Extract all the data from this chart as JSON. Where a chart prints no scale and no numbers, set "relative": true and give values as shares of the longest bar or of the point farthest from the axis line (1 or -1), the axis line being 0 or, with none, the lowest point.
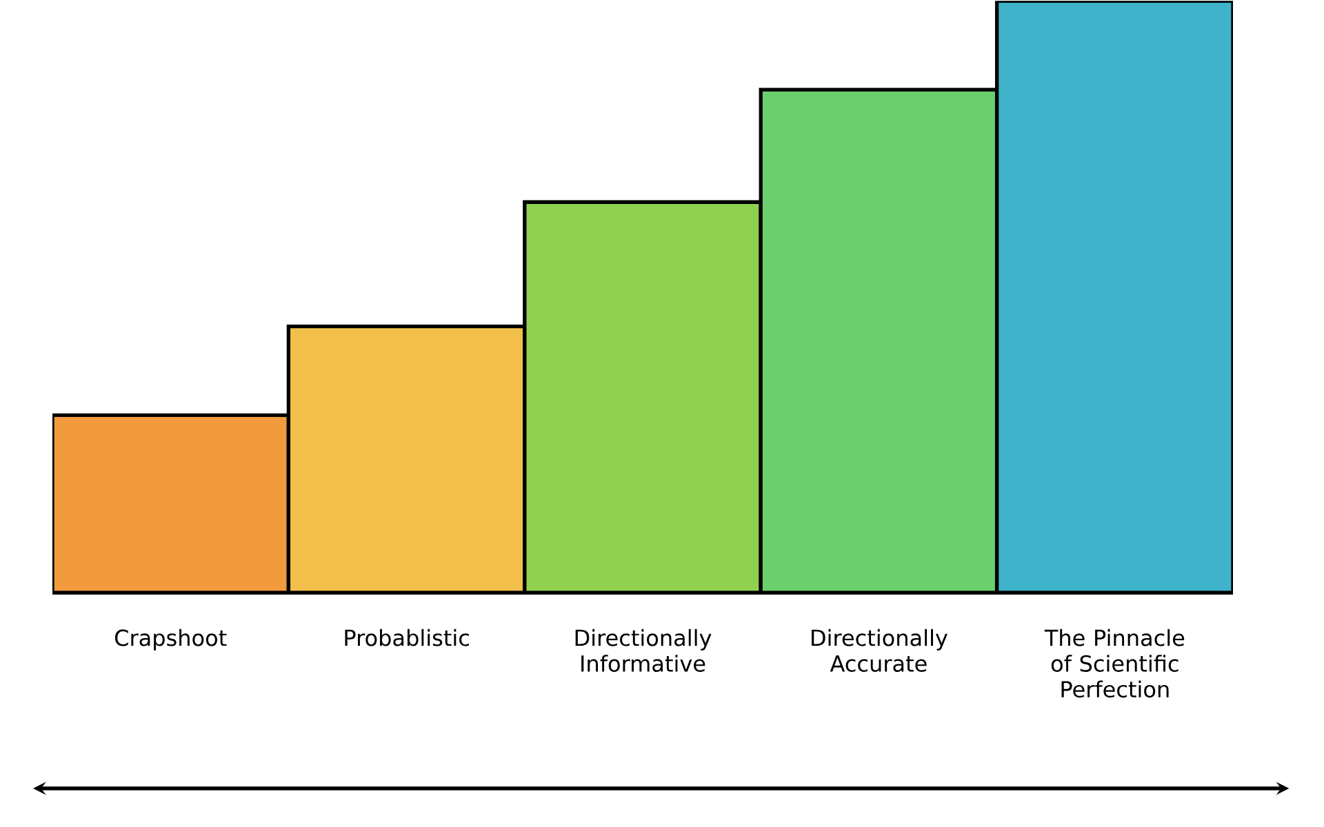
{
  "chart_data": {
    "type": "bar",
    "relative": true,
    "categories": [
      "Crapshoot",
      "Probablistic",
      "Directionally Informative",
      "Directionally Accurate",
      "The Pinnacle of Scientific Perfection"
    ],
    "values": [
      0.3,
      0.45,
      0.66,
      0.85,
      1
    ],
    "colors": [
      "#f19a3e",
      "#f2c04a",
      "#8fd14f",
      "#6ccf6e",
      "#3fb3c9"
    ]
  }
}
